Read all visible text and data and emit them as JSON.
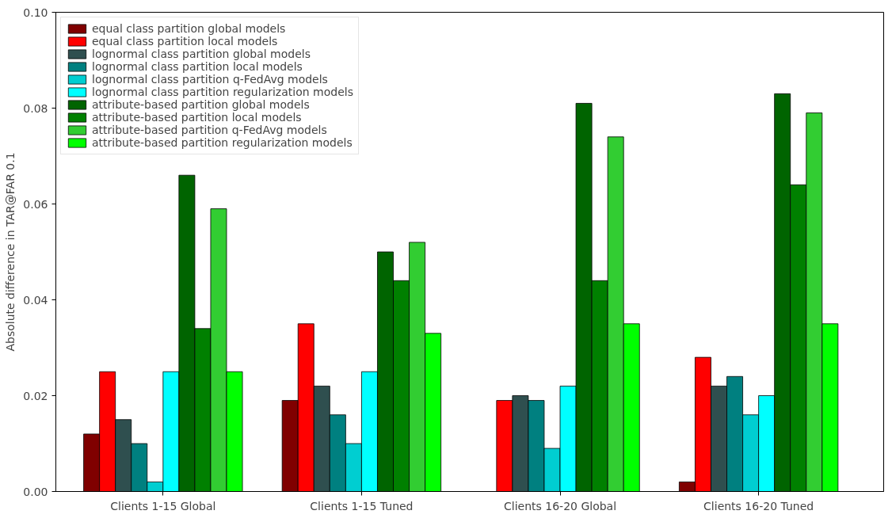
{
  "chart_data": {
    "type": "bar",
    "ylabel": "Absolute difference in TAR@FAR 0.1",
    "categories": [
      "Clients 1-15 Global",
      "Clients 1-15 Tuned",
      "Clients 16-20 Global",
      "Clients 16-20 Tuned"
    ],
    "ylim": [
      0,
      0.1
    ],
    "yticks": [
      {
        "value": 0,
        "label": "0.00"
      },
      {
        "value": 0.02,
        "label": "0.02"
      },
      {
        "value": 0.04,
        "label": "0.04"
      },
      {
        "value": 0.06,
        "label": "0.06"
      },
      {
        "value": 0.08,
        "label": "0.08"
      },
      {
        "value": 0.1,
        "label": "0.10"
      }
    ],
    "grid": false,
    "legend": "top left",
    "series": [
      {
        "name": "equal class partition global models",
        "color": "#800000",
        "values": [
          0.012,
          0.019,
          null,
          0.002
        ]
      },
      {
        "name": "equal class partition local models",
        "color": "#ff0000",
        "values": [
          0.025,
          0.035,
          0.019,
          0.028
        ]
      },
      {
        "name": "lognormal class partition global models",
        "color": "#2f4f4f",
        "values": [
          0.015,
          0.022,
          0.02,
          0.022
        ]
      },
      {
        "name": "lognormal class partition local models",
        "color": "#008080",
        "values": [
          0.01,
          0.016,
          0.019,
          0.024
        ]
      },
      {
        "name": "lognormal class partition q-FedAvg models",
        "color": "#00ced1",
        "values": [
          0.002,
          0.01,
          0.009,
          0.016
        ]
      },
      {
        "name": "lognormal class partition regularization models",
        "color": "#00ffff",
        "values": [
          0.025,
          0.025,
          0.022,
          0.02
        ]
      },
      {
        "name": "attribute-based partition global models",
        "color": "#006400",
        "values": [
          0.066,
          0.05,
          0.081,
          0.083
        ]
      },
      {
        "name": "attribute-based partition local models",
        "color": "#008000",
        "values": [
          0.034,
          0.044,
          0.044,
          0.064
        ]
      },
      {
        "name": "attribute-based partition q-FedAvg models",
        "color": "#32cd32",
        "values": [
          0.059,
          0.052,
          0.074,
          0.079
        ]
      },
      {
        "name": "attribute-based partition regularization models",
        "color": "#00ff00",
        "values": [
          0.025,
          0.033,
          0.035,
          0.035
        ]
      }
    ]
  }
}
